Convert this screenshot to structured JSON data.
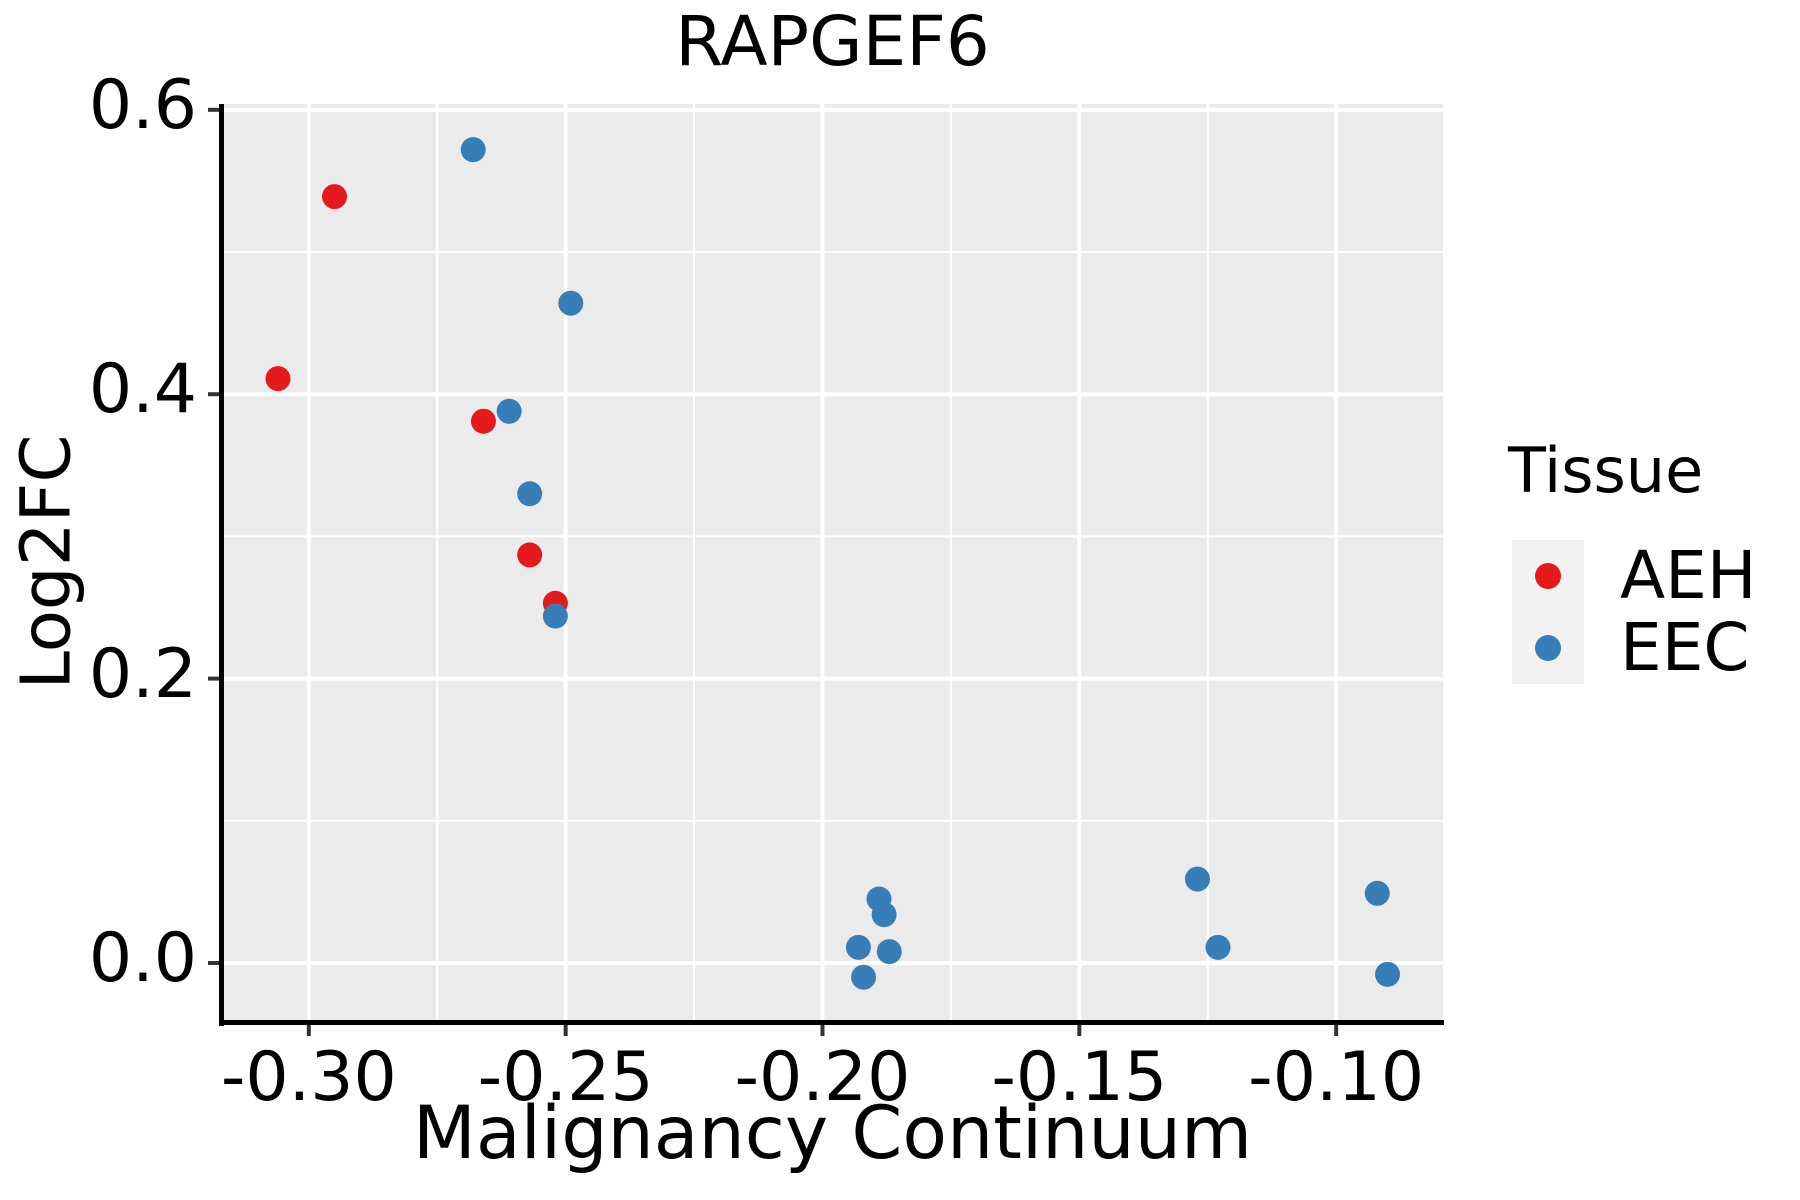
{
  "chart_data": {
    "type": "scatter",
    "title": "RAPGEF6",
    "xlabel": "Malignancy Continuum",
    "ylabel": "Log2FC",
    "xlim": [
      -0.3169,
      -0.0792
    ],
    "ylim": [
      -0.0408,
      0.6041
    ],
    "x_tick_values": [
      -0.3,
      -0.25,
      -0.2,
      -0.15,
      -0.1
    ],
    "x_tick_labels": [
      "-0.30",
      "-0.25",
      "-0.20",
      "-0.15",
      "-0.10"
    ],
    "y_tick_values": [
      0.0,
      0.2,
      0.4,
      0.6
    ],
    "y_tick_labels": [
      "0.0",
      "0.2",
      "0.4",
      "0.6"
    ],
    "x_minor_values": [
      -0.275,
      -0.225,
      -0.175,
      -0.125
    ],
    "y_minor_values": [
      0.1,
      0.3,
      0.5
    ],
    "grid": "on",
    "legend_position": "right",
    "series": [
      {
        "name": "AEH",
        "color": "#E41A1C",
        "points": [
          [
            -0.306,
            0.411
          ],
          [
            -0.295,
            0.539
          ],
          [
            -0.266,
            0.381
          ],
          [
            -0.257,
            0.287
          ],
          [
            -0.252,
            0.253
          ]
        ]
      },
      {
        "name": "EEC",
        "color": "#377EB8",
        "points": [
          [
            -0.268,
            0.572
          ],
          [
            -0.261,
            0.388
          ],
          [
            -0.257,
            0.33
          ],
          [
            -0.252,
            0.244
          ],
          [
            -0.249,
            0.464
          ],
          [
            -0.193,
            0.011
          ],
          [
            -0.192,
            -0.01
          ],
          [
            -0.189,
            0.045
          ],
          [
            -0.188,
            0.034
          ],
          [
            -0.187,
            0.008
          ],
          [
            -0.127,
            0.059
          ],
          [
            -0.123,
            0.011
          ],
          [
            -0.092,
            0.049
          ],
          [
            -0.09,
            -0.008
          ]
        ]
      }
    ],
    "legend": {
      "title": "Tissue",
      "entries": [
        {
          "label": "AEH",
          "color": "#E41A1C"
        },
        {
          "label": "EEC",
          "color": "#377EB8"
        }
      ]
    },
    "colors": {
      "panel_background": "#EBEBEB",
      "gridline": "#FFFFFF",
      "axis_line": "#000000",
      "tick_mark": "#333333",
      "legend_key_background": "#F2F2F2"
    }
  }
}
